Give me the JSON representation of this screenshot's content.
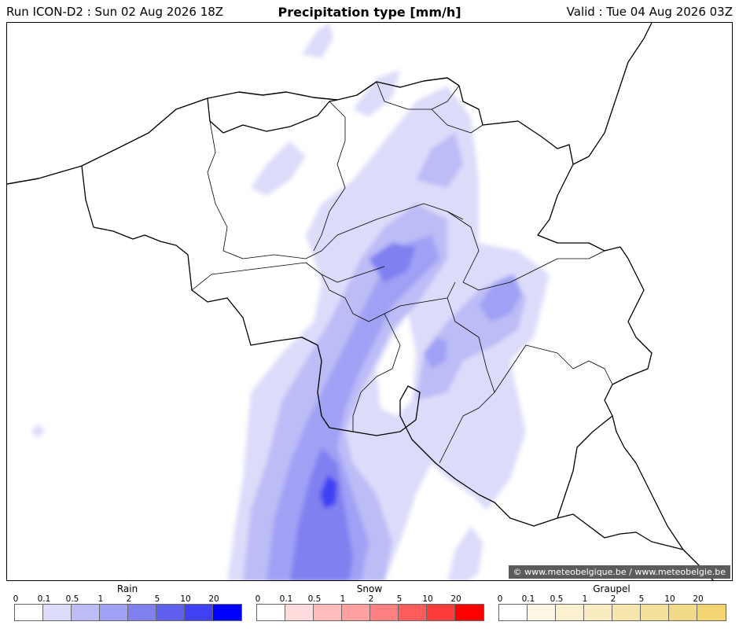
{
  "header": {
    "run": "Run ICON-D2 : Sun 02 Aug 2026 18Z",
    "title": "Precipitation type [mm/h]",
    "valid": "Valid : Tue 04 Aug 2026 03Z"
  },
  "map": {
    "credit": "© www.meteobelgique.be / www.meteobelgie.be"
  },
  "legends": [
    {
      "title": "Rain",
      "ticks": [
        "0",
        "0.1",
        "0.5",
        "1",
        "2",
        "5",
        "10",
        "20"
      ],
      "colors": [
        "#ffffff",
        "#dcdcfa",
        "#bcbcf7",
        "#a0a0f5",
        "#8080f0",
        "#6060f0",
        "#4040f5",
        "#0000ff"
      ]
    },
    {
      "title": "Snow",
      "ticks": [
        "0",
        "0.1",
        "0.5",
        "1",
        "2",
        "5",
        "10",
        "20"
      ],
      "colors": [
        "#ffffff",
        "#ffdcdc",
        "#ffbcbc",
        "#ffa0a0",
        "#ff8080",
        "#ff5c5c",
        "#ff3c3c",
        "#ff0000"
      ]
    },
    {
      "title": "Graupel",
      "ticks": [
        "0",
        "0.1",
        "0.5",
        "1",
        "2",
        "5",
        "10",
        "20"
      ],
      "colors": [
        "#ffffff",
        "#fcf7e6",
        "#fbf0d0",
        "#f9ecc0",
        "#f7e6ac",
        "#f5e09a",
        "#f3da88",
        "#f2d470"
      ]
    }
  ]
}
